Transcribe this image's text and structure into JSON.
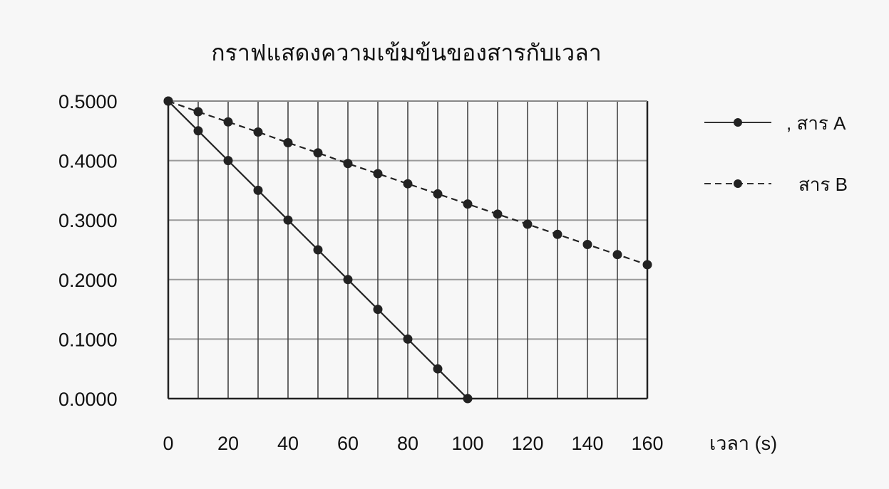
{
  "chart_data": {
    "type": "line",
    "title": "กราฟแสดงความเข้มข้นของสารกับเวลา",
    "xlabel": "เวลา (s)",
    "ylabel": "",
    "xlim": [
      0,
      160
    ],
    "ylim": [
      0,
      0.5
    ],
    "x_ticks": [
      "0",
      "20",
      "40",
      "60",
      "80",
      "100",
      "120",
      "140",
      "160"
    ],
    "y_ticks": [
      "0.0000",
      "0.1000",
      "0.2000",
      "0.3000",
      "0.4000",
      "0.5000"
    ],
    "grid": true,
    "legend_position": "right",
    "series": [
      {
        "name": ", สาร A",
        "line_style": "solid",
        "marker": "circle",
        "color": "#222222",
        "x": [
          0,
          10,
          20,
          30,
          40,
          50,
          60,
          70,
          80,
          90,
          100
        ],
        "y": [
          0.5,
          0.45,
          0.4,
          0.35,
          0.3,
          0.25,
          0.2,
          0.15,
          0.1,
          0.05,
          0.0
        ]
      },
      {
        "name": "สาร B",
        "line_style": "dashed",
        "marker": "circle",
        "color": "#222222",
        "x": [
          0,
          10,
          20,
          30,
          40,
          50,
          60,
          70,
          80,
          90,
          100,
          110,
          120,
          130,
          140,
          150,
          160
        ],
        "y": [
          0.5,
          0.482,
          0.465,
          0.448,
          0.43,
          0.413,
          0.395,
          0.378,
          0.361,
          0.344,
          0.327,
          0.31,
          0.293,
          0.276,
          0.259,
          0.242,
          0.225
        ]
      }
    ]
  }
}
